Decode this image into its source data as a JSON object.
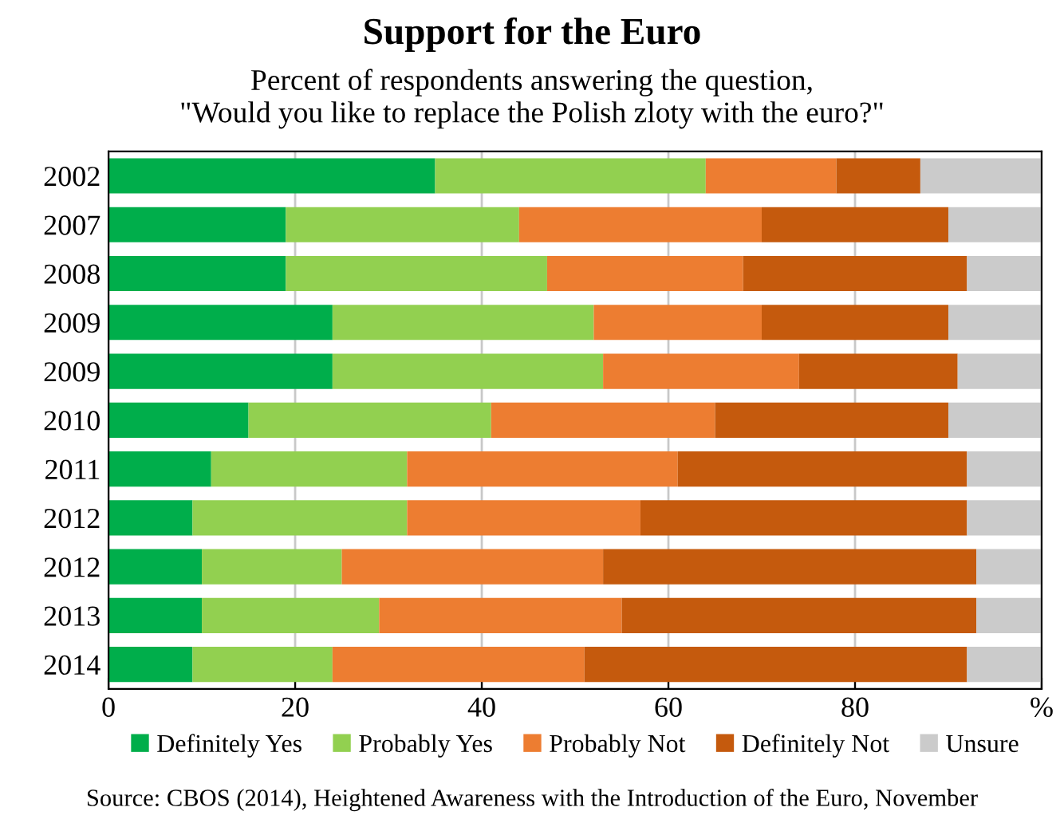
{
  "chart_data": {
    "type": "bar",
    "orientation": "horizontal",
    "stacked": true,
    "title": "Support for the Euro",
    "subtitle": "Percent of respondents answering the question,\n\"Would you like to replace the Polish zloty with the euro?\"",
    "categories": [
      "2002",
      "2007",
      "2008",
      "2009",
      "2009",
      "2010",
      "2011",
      "2012",
      "2012",
      "2013",
      "2014"
    ],
    "series": [
      {
        "name": "Definitely Yes",
        "color": "#00ae4b",
        "values": [
          35,
          19,
          19,
          24,
          24,
          15,
          11,
          9,
          10,
          10,
          9
        ]
      },
      {
        "name": "Probably Yes",
        "color": "#92d050",
        "values": [
          29,
          25,
          28,
          28,
          29,
          26,
          21,
          23,
          15,
          19,
          15
        ]
      },
      {
        "name": "Probably Not",
        "color": "#ed7d31",
        "values": [
          14,
          26,
          21,
          18,
          21,
          24,
          29,
          25,
          28,
          26,
          27
        ]
      },
      {
        "name": "Definitely Not",
        "color": "#c55a0d",
        "values": [
          9,
          20,
          24,
          20,
          17,
          25,
          31,
          35,
          40,
          38,
          41
        ]
      },
      {
        "name": "Unsure",
        "color": "#cbcbcb",
        "values": [
          13,
          10,
          8,
          10,
          9,
          10,
          8,
          8,
          7,
          7,
          8
        ]
      }
    ],
    "xlim": [
      0,
      100
    ],
    "xticks": [
      0,
      20,
      40,
      60,
      80,
      {
        "value": 100,
        "label": "%"
      }
    ],
    "grid": "x",
    "legend": "bottom",
    "annotations": [
      "Source: CBOS (2014), Heightened Awareness with the Introduction of the Euro, November"
    ]
  }
}
